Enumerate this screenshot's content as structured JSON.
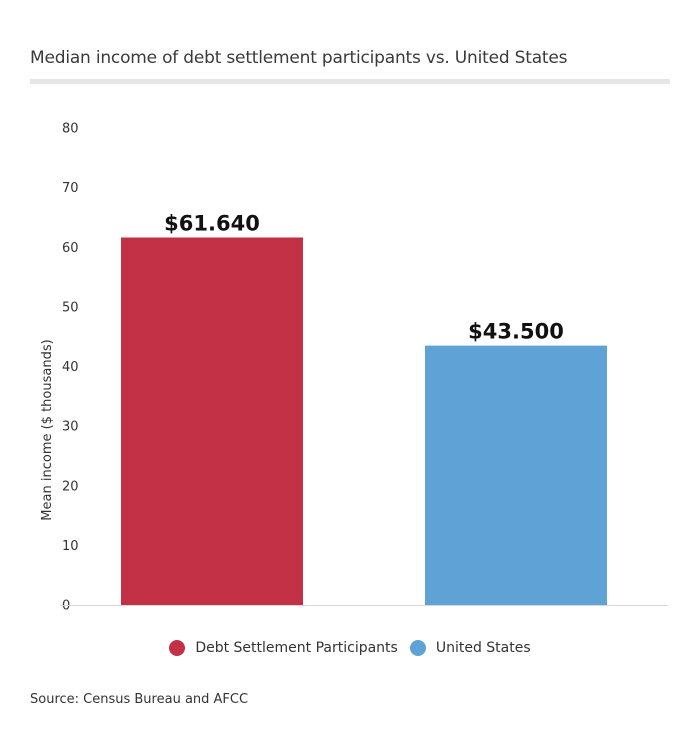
{
  "chart_data": {
    "type": "bar",
    "title": "Median income of debt settlement participants vs. United States",
    "ylabel": "Mean income ($ thousands)",
    "xlabel": "",
    "categories": [
      "Debt Settlement Participants",
      "United States"
    ],
    "values": [
      61.64,
      43.5
    ],
    "data_labels": [
      "$61.640",
      "$43.500"
    ],
    "colors": [
      "#c33147",
      "#5fa3d6"
    ],
    "ylim": [
      0,
      80
    ],
    "yticks": [
      0,
      10,
      20,
      30,
      40,
      50,
      60,
      70,
      80
    ],
    "grid": false,
    "legend_position": "bottom-center",
    "legend": [
      {
        "label": "Debt Settlement Participants",
        "color": "#c33147"
      },
      {
        "label": "United States",
        "color": "#5fa3d6"
      }
    ],
    "source": "Source: Census Bureau and AFCC"
  }
}
